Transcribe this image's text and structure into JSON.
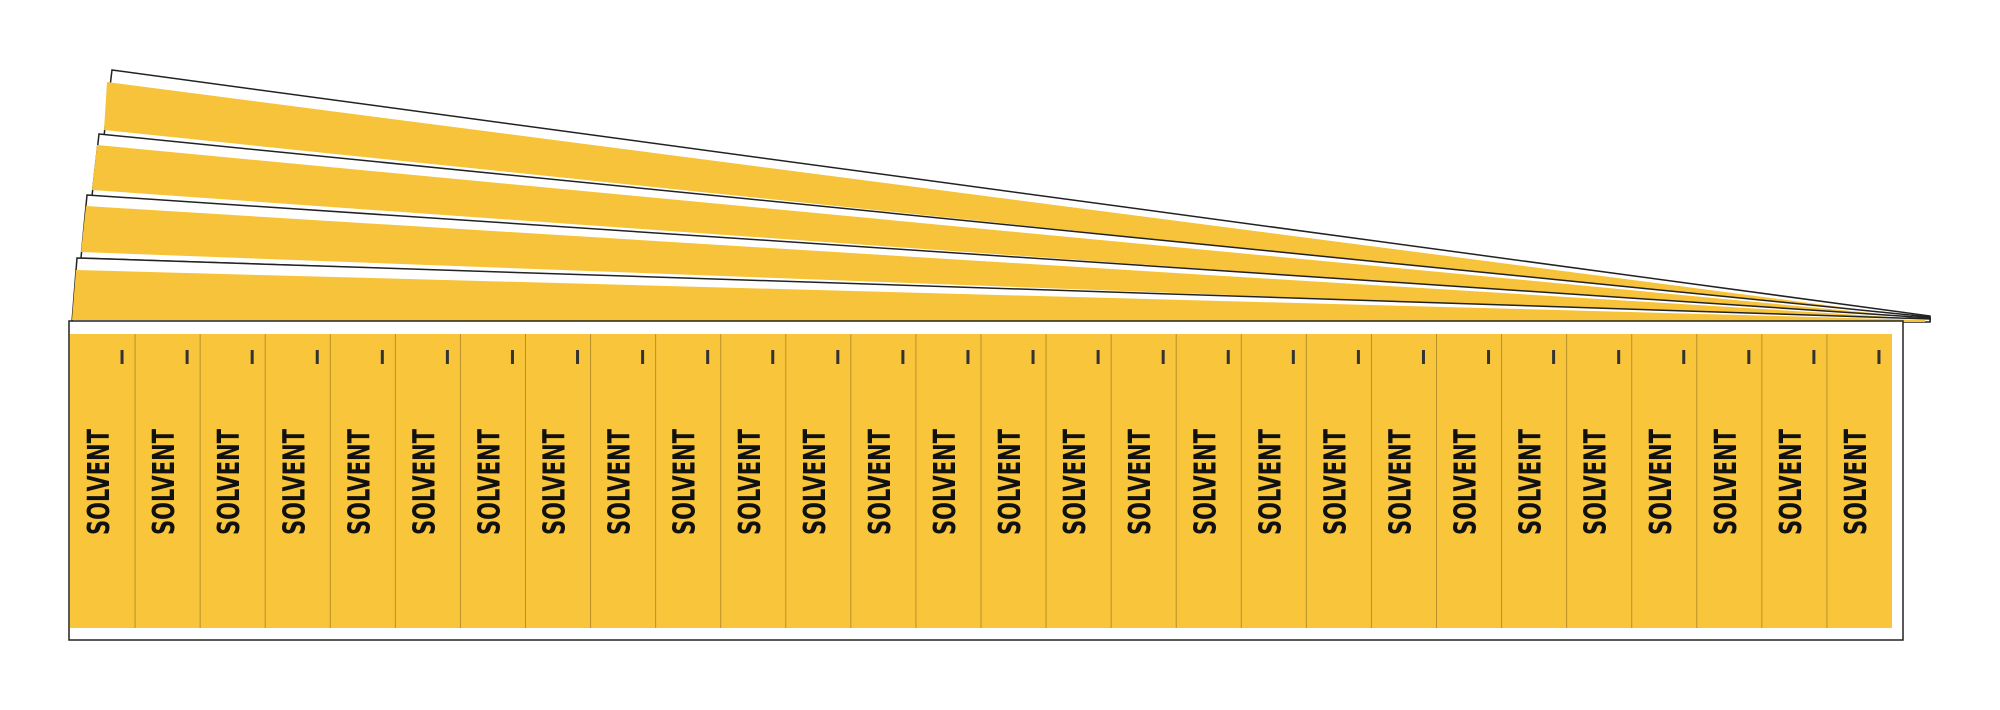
{
  "front_sheet": {
    "labels": [
      "SOLVENT",
      "SOLVENT",
      "SOLVENT",
      "SOLVENT",
      "SOLVENT",
      "SOLVENT",
      "SOLVENT",
      "SOLVENT",
      "SOLVENT",
      "SOLVENT",
      "SOLVENT",
      "SOLVENT",
      "SOLVENT",
      "SOLVENT",
      "SOLVENT",
      "SOLVENT",
      "SOLVENT",
      "SOLVENT",
      "SOLVENT",
      "SOLVENT",
      "SOLVENT",
      "SOLVENT",
      "SOLVENT",
      "SOLVENT",
      "SOLVENT",
      "SOLVENT",
      "SOLVENT",
      "SOLVENT"
    ]
  }
}
